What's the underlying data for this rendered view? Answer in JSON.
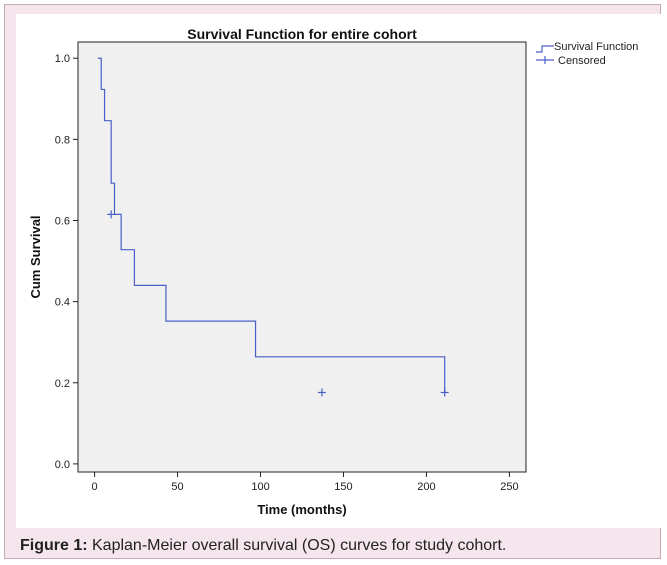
{
  "caption": {
    "label": "Figure 1:",
    "text": " Kaplan-Meier overall survival (OS) curves for study cohort."
  },
  "colors": {
    "plot_bg": "#f0f0f0",
    "curve": "#4a5ec8",
    "axis": "#222222"
  },
  "chart_data": {
    "type": "line",
    "title": "Survival Function for entire cohort",
    "xlabel": "Time (months)",
    "ylabel": "Cum Survival",
    "xlim": [
      -10,
      260
    ],
    "ylim": [
      -0.02,
      1.04
    ],
    "xticks": [
      0,
      50,
      100,
      150,
      200,
      250
    ],
    "xtick_labels": [
      "0",
      "50",
      "100",
      "150",
      "200",
      "250"
    ],
    "yticks": [
      0.0,
      0.2,
      0.4,
      0.6,
      0.8,
      1.0
    ],
    "ytick_labels": [
      "0.0",
      "0.2",
      "0.4",
      "0.6",
      "0.8",
      "1.0"
    ],
    "grid": false,
    "legend": {
      "placement": "top-right-outside",
      "entries": [
        "Survival Function",
        "Censored"
      ]
    },
    "series": [
      {
        "name": "Survival Function",
        "step": true,
        "x": [
          2,
          4,
          6,
          10,
          12,
          16,
          24,
          43,
          97,
          211
        ],
        "y": [
          1.0,
          0.923,
          0.846,
          0.692,
          0.615,
          0.528,
          0.44,
          0.352,
          0.264,
          0.176
        ]
      },
      {
        "name": "Censored",
        "x": [
          10,
          137,
          211
        ],
        "y": [
          0.615,
          0.176,
          0.176
        ]
      }
    ]
  }
}
